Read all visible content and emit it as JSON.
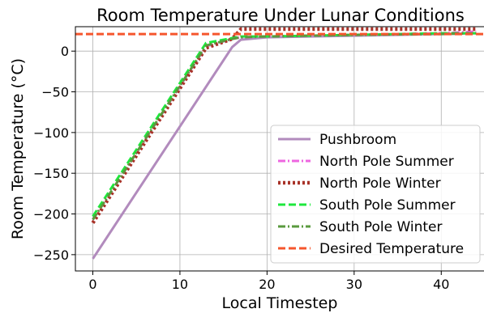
{
  "chart_data": {
    "type": "line",
    "title": "Room Temperature Under Lunar Conditions",
    "xlabel": "Local Timestep",
    "ylabel": "Room Temperature (°C)",
    "xlim": [
      -2,
      45
    ],
    "ylim": [
      -270,
      30
    ],
    "xticks": [
      0,
      10,
      20,
      30,
      40
    ],
    "yticks": [
      0,
      -50,
      -100,
      -150,
      -200,
      -250
    ],
    "grid": true,
    "legend_position": "lower-right",
    "series": [
      {
        "name": "Pushbroom",
        "color": "#b28bbd",
        "style": "solid",
        "x": [
          0,
          16,
          17,
          20,
          30,
          40,
          44
        ],
        "y": [
          -255,
          5,
          14,
          17,
          19,
          21,
          22
        ]
      },
      {
        "name": "North Pole Summer",
        "color": "#ee66e0",
        "style": "dashdot",
        "x": [
          0,
          13,
          16,
          17,
          20,
          30,
          40,
          44
        ],
        "y": [
          -207,
          6,
          15,
          17,
          18,
          20,
          22,
          24
        ]
      },
      {
        "name": "North Pole Winter",
        "color": "#a83228",
        "style": "dotted",
        "x": [
          0,
          13,
          16,
          17,
          44
        ],
        "y": [
          -211,
          4,
          15,
          27,
          27
        ]
      },
      {
        "name": "South Pole Summer",
        "color": "#1ee83c",
        "style": "dashed",
        "x": [
          0,
          13,
          16,
          17,
          20,
          30,
          40,
          44
        ],
        "y": [
          -203,
          10,
          16,
          18,
          18,
          20,
          22,
          22
        ]
      },
      {
        "name": "South Pole Winter",
        "color": "#5a9a3e",
        "style": "dashdot",
        "x": [
          0,
          13,
          16,
          17,
          20,
          30,
          40,
          44
        ],
        "y": [
          -207,
          7,
          15,
          17,
          18,
          20,
          21,
          22
        ]
      },
      {
        "name": "Desired Temperature",
        "color": "#f5562d",
        "style": "dashed",
        "x": [
          -2,
          45
        ],
        "y": [
          21,
          21
        ]
      }
    ]
  }
}
